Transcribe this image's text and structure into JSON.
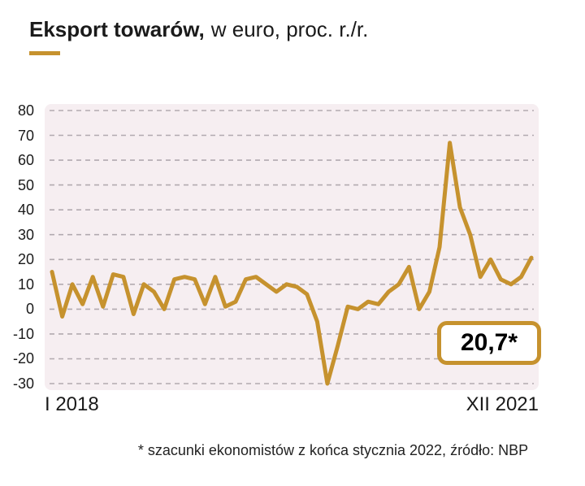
{
  "header": {
    "title_bold": "Eksport towarów,",
    "title_regular": "w euro, proc. r./r.",
    "accent_color": "#c6922e"
  },
  "chart_data": {
    "type": "line",
    "title": "Eksport towarów, w euro, proc. r./r.",
    "x_axis": {
      "start_label": "I 2018",
      "end_label": "XII 2021",
      "frequency": "monthly",
      "n_points": 48
    },
    "y_axis": {
      "min": -30,
      "max": 80,
      "tick_step": 10,
      "ticks": [
        80,
        70,
        60,
        50,
        40,
        30,
        20,
        10,
        0,
        -10,
        -20,
        -30
      ]
    },
    "grid": {
      "style": "dashed",
      "color": "#b2aab0"
    },
    "legend": "none",
    "plot_background": "#f6eef1",
    "series": [
      {
        "name": "Eksport towarów, proc. r./r.",
        "color": "#c6922e",
        "values": [
          15,
          -3,
          10,
          2,
          13,
          1,
          14,
          13,
          -2,
          10,
          7,
          0,
          12,
          13,
          12,
          2,
          13,
          1,
          3,
          12,
          13,
          10,
          7,
          10,
          9,
          6,
          -5,
          -30,
          -15,
          1,
          0,
          3,
          2,
          7,
          10,
          17,
          0,
          7,
          25,
          67,
          41,
          30,
          13,
          20,
          12,
          10,
          13,
          20.7
        ]
      }
    ],
    "annotation": {
      "label": "20,7*",
      "applies_to": "XII 2021"
    }
  },
  "footnote": "* szacunki ekonomistów z końca stycznia 2022, źródło: NBP"
}
